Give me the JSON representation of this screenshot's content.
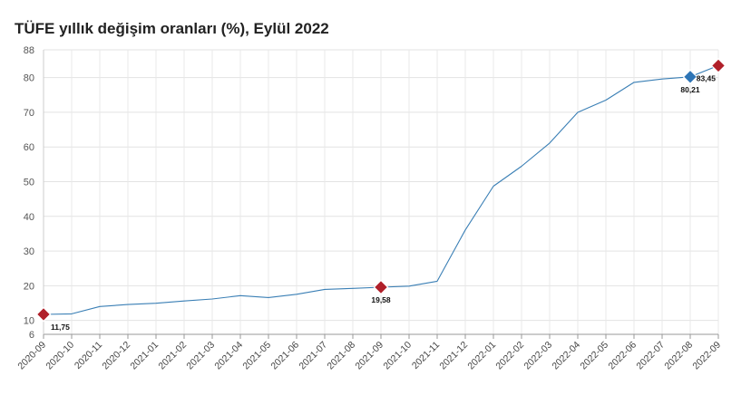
{
  "title": "TÜFE yıllık değişim oranları (%), Eylül 2022",
  "chart_data": {
    "type": "line",
    "title": "TÜFE yıllık değişim oranları (%), Eylül 2022",
    "xlabel": "",
    "ylabel": "",
    "categories": [
      "2020-09",
      "2020-10",
      "2020-11",
      "2020-12",
      "2021-01",
      "2021-02",
      "2021-03",
      "2021-04",
      "2021-05",
      "2021-06",
      "2021-07",
      "2021-08",
      "2021-09",
      "2021-10",
      "2021-11",
      "2021-12",
      "2022-01",
      "2022-02",
      "2022-03",
      "2022-04",
      "2022-05",
      "2022-06",
      "2022-07",
      "2022-08",
      "2022-09"
    ],
    "series": [
      {
        "values": [
          11.75,
          11.89,
          14.03,
          14.6,
          14.97,
          15.61,
          16.19,
          17.14,
          16.59,
          17.53,
          18.95,
          19.25,
          19.58,
          19.89,
          21.31,
          36.08,
          48.69,
          54.44,
          61.14,
          69.97,
          73.5,
          78.62,
          79.6,
          80.21,
          83.45
        ],
        "color": "#3a7fb5"
      }
    ],
    "highlights": [
      {
        "category": "2020-09",
        "label": "11,75",
        "color": "#b0202a"
      },
      {
        "category": "2021-09",
        "label": "19,58",
        "color": "#b0202a"
      },
      {
        "category": "2022-08",
        "label": "80,21",
        "color": "#2e75b6"
      },
      {
        "category": "2022-09",
        "label": "83,45",
        "color": "#b0202a"
      }
    ],
    "yticks": [
      6,
      10,
      20,
      30,
      40,
      50,
      60,
      70,
      80,
      88
    ],
    "ylim": [
      6,
      88
    ],
    "grid": true,
    "legend": "none"
  }
}
